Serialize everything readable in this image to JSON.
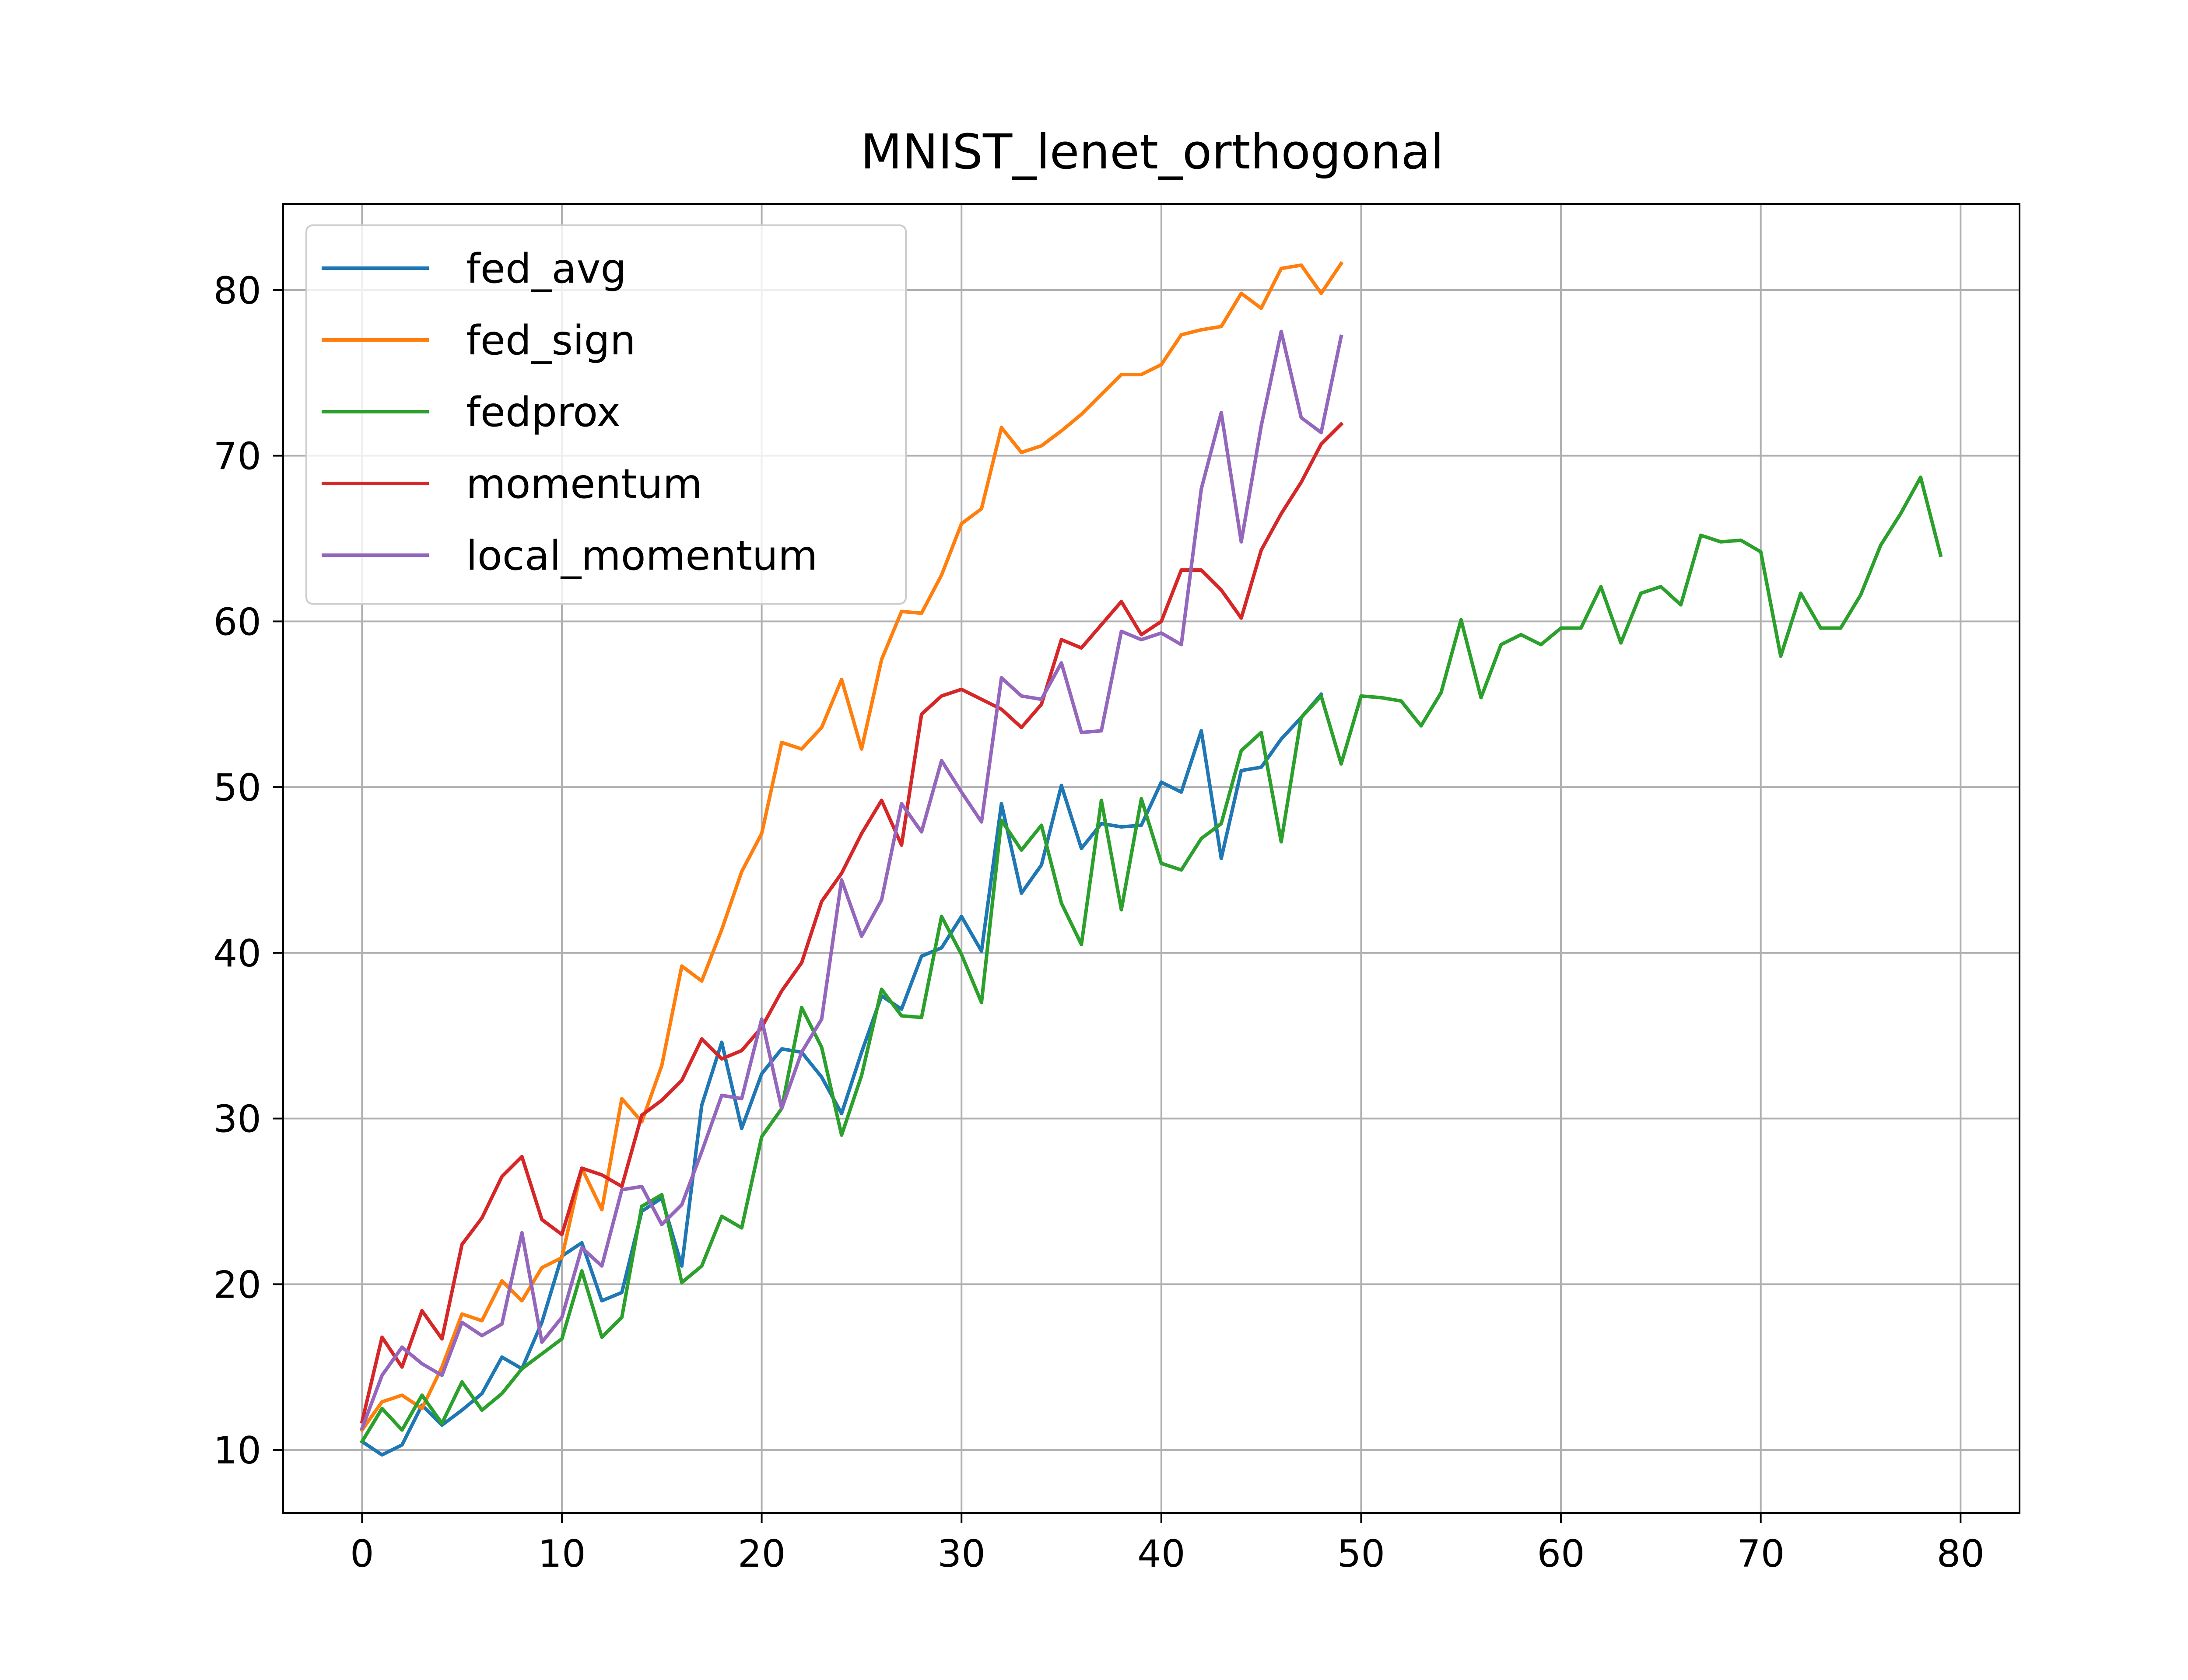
{
  "chart_data": {
    "type": "line",
    "title": "MNIST_lenet_orthogonal",
    "xlabel": "",
    "ylabel": "",
    "xlim": [
      -3.95,
      82.95
    ],
    "ylim": [
      6.2,
      85.2
    ],
    "xticks": [
      0,
      10,
      20,
      30,
      40,
      50,
      60,
      70,
      80
    ],
    "yticks": [
      10,
      20,
      30,
      40,
      50,
      60,
      70,
      80
    ],
    "grid": true,
    "legend_position": "upper-left",
    "series": [
      {
        "name": "fed_avg",
        "color": "#1f77b4",
        "x": [
          0,
          1,
          2,
          3,
          4,
          5,
          6,
          7,
          8,
          9,
          10,
          11,
          12,
          13,
          14,
          15,
          16,
          17,
          18,
          19,
          20,
          21,
          22,
          23,
          24,
          25,
          26,
          27,
          28,
          29,
          30,
          31,
          32,
          33,
          34,
          35,
          36,
          37,
          38,
          39,
          40,
          41,
          42,
          43,
          44,
          45,
          46,
          47,
          48
        ],
        "y": [
          10.5,
          9.7,
          10.3,
          12.7,
          11.5,
          12.4,
          13.4,
          15.6,
          14.9,
          17.7,
          21.7,
          22.5,
          19.0,
          19.5,
          24.4,
          25.2,
          21.1,
          30.8,
          34.6,
          29.4,
          32.7,
          34.2,
          34.0,
          32.5,
          30.3,
          34.0,
          37.4,
          36.6,
          39.8,
          40.3,
          42.2,
          40.1,
          49.0,
          43.6,
          45.3,
          50.1,
          46.3,
          47.8,
          47.6,
          47.7,
          50.3,
          49.7,
          53.4,
          45.7,
          51.0,
          51.2,
          52.9,
          54.2,
          55.6
        ]
      },
      {
        "name": "fed_sign",
        "color": "#ff7f0e",
        "x": [
          0,
          1,
          2,
          3,
          4,
          5,
          6,
          7,
          8,
          9,
          10,
          11,
          12,
          13,
          14,
          15,
          16,
          17,
          18,
          19,
          20,
          21,
          22,
          23,
          24,
          25,
          26,
          27,
          28,
          29,
          30,
          31,
          32,
          33,
          34,
          35,
          36,
          37,
          38,
          39,
          40,
          41,
          42,
          43,
          44,
          45,
          46,
          47,
          48,
          49
        ],
        "y": [
          11.2,
          12.9,
          13.3,
          12.5,
          15.0,
          18.2,
          17.8,
          20.2,
          19.0,
          21.0,
          21.6,
          27.0,
          24.5,
          31.2,
          29.8,
          33.2,
          39.2,
          38.3,
          41.4,
          44.9,
          47.2,
          52.7,
          52.3,
          53.6,
          56.5,
          52.3,
          57.7,
          60.6,
          60.5,
          62.8,
          65.9,
          66.8,
          71.7,
          70.2,
          70.6,
          71.5,
          72.5,
          73.7,
          74.9,
          74.9,
          75.5,
          77.3,
          77.6,
          77.8,
          79.8,
          78.9,
          81.3,
          81.5,
          79.8,
          81.6
        ]
      },
      {
        "name": "fedprox",
        "color": "#2ca02c",
        "x": [
          0,
          1,
          2,
          3,
          4,
          5,
          6,
          7,
          8,
          9,
          10,
          11,
          12,
          13,
          14,
          15,
          16,
          17,
          18,
          19,
          20,
          21,
          22,
          23,
          24,
          25,
          26,
          27,
          28,
          29,
          30,
          31,
          32,
          33,
          34,
          35,
          36,
          37,
          38,
          39,
          40,
          41,
          42,
          43,
          44,
          45,
          46,
          47,
          48,
          49,
          50,
          51,
          52,
          53,
          54,
          55,
          56,
          57,
          58,
          59,
          60,
          61,
          62,
          63,
          64,
          65,
          66,
          67,
          68,
          69,
          70,
          71,
          72,
          73,
          74,
          75,
          76,
          77,
          78,
          79
        ],
        "y": [
          10.5,
          12.5,
          11.2,
          13.3,
          11.6,
          14.1,
          12.4,
          13.4,
          14.9,
          15.8,
          16.7,
          20.8,
          16.8,
          18.0,
          24.7,
          25.4,
          20.1,
          21.1,
          24.1,
          23.4,
          28.9,
          30.6,
          36.7,
          34.3,
          29.0,
          32.6,
          37.8,
          36.2,
          36.1,
          42.2,
          39.9,
          37.0,
          48.0,
          46.2,
          47.7,
          43.0,
          40.5,
          49.2,
          42.6,
          49.3,
          45.4,
          45.0,
          46.9,
          47.8,
          52.2,
          53.3,
          46.7,
          54.2,
          55.5,
          51.4,
          55.5,
          55.4,
          55.2,
          53.7,
          55.7,
          60.1,
          55.4,
          58.6,
          59.2,
          58.6,
          59.6,
          59.6,
          62.1,
          58.7,
          61.7,
          62.1,
          61.0,
          65.2,
          64.8,
          64.9,
          64.2,
          57.9,
          61.7,
          59.6,
          59.6,
          61.6,
          64.6,
          66.5,
          68.7,
          64.0
        ]
      },
      {
        "name": "momentum",
        "color": "#d62728",
        "x": [
          0,
          1,
          2,
          3,
          4,
          5,
          6,
          7,
          8,
          9,
          10,
          11,
          12,
          13,
          14,
          15,
          16,
          17,
          18,
          19,
          20,
          21,
          22,
          23,
          24,
          25,
          26,
          27,
          28,
          29,
          30,
          31,
          32,
          33,
          34,
          35,
          36,
          37,
          38,
          39,
          40,
          41,
          42,
          43,
          44,
          45,
          46,
          47,
          48,
          49
        ],
        "y": [
          11.7,
          16.8,
          15.0,
          18.4,
          16.7,
          22.4,
          24.0,
          26.5,
          27.7,
          23.9,
          23.0,
          27.0,
          26.6,
          25.9,
          30.2,
          31.1,
          32.3,
          34.8,
          33.6,
          34.1,
          35.5,
          37.7,
          39.4,
          43.1,
          44.8,
          47.2,
          49.2,
          46.5,
          54.4,
          55.5,
          55.9,
          55.3,
          54.7,
          53.6,
          55.0,
          58.9,
          58.4,
          59.8,
          61.2,
          59.2,
          60.0,
          63.1,
          63.1,
          61.9,
          60.2,
          64.3,
          66.5,
          68.4,
          70.7,
          71.9
        ]
      },
      {
        "name": "local_momentum",
        "color": "#9467bd",
        "x": [
          0,
          1,
          2,
          3,
          4,
          5,
          6,
          7,
          8,
          9,
          10,
          11,
          12,
          13,
          14,
          15,
          16,
          17,
          18,
          19,
          20,
          21,
          22,
          23,
          24,
          25,
          26,
          27,
          28,
          29,
          30,
          31,
          32,
          33,
          34,
          35,
          36,
          37,
          38,
          39,
          40,
          41,
          42,
          43,
          44,
          45,
          46,
          47,
          48,
          49
        ],
        "y": [
          11.3,
          14.5,
          16.2,
          15.2,
          14.5,
          17.7,
          16.9,
          17.6,
          23.1,
          16.5,
          18.0,
          22.2,
          21.1,
          25.7,
          25.9,
          23.6,
          24.8,
          28.0,
          31.4,
          31.2,
          36.0,
          30.6,
          34.0,
          36.0,
          44.4,
          41.0,
          43.2,
          49.0,
          47.3,
          51.6,
          49.7,
          47.9,
          56.6,
          55.5,
          55.3,
          57.5,
          53.3,
          53.4,
          59.4,
          58.9,
          59.3,
          58.6,
          68.0,
          72.6,
          64.8,
          71.8,
          77.5,
          72.3,
          71.4,
          77.2
        ]
      }
    ]
  }
}
